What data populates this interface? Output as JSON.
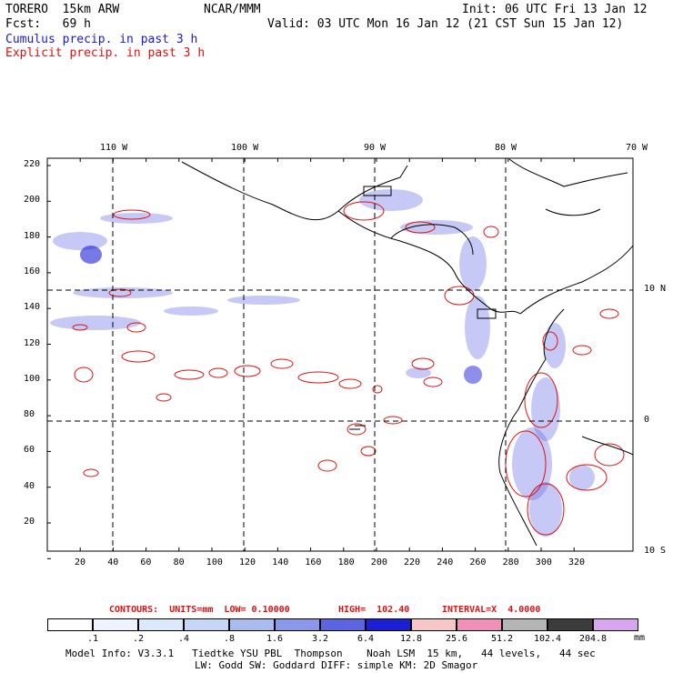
{
  "header": {
    "model": "TORERO  15km ARW",
    "org": "NCAR/MMM",
    "init": "Init: 06 UTC Fri 13 Jan 12",
    "fcst": "Fcst:   69 h",
    "valid": "Valid: 03 UTC Mon 16 Jan 12 (21 CST Sun 15 Jan 12)",
    "line_cumulus": "Cumulus precip. in past 3 h",
    "line_explicit": "Explicit precip. in past 3 h"
  },
  "axes": {
    "top_lon": [
      "110 W",
      "100 W",
      "90 W",
      "80 W",
      "70 W"
    ],
    "right_lat": [
      "10 N",
      "0",
      "10 S"
    ],
    "left_y": [
      "220",
      "200",
      "180",
      "160",
      "140",
      "120",
      "100",
      "80",
      "60",
      "40",
      "20"
    ],
    "bottom_x": [
      "20",
      "40",
      "60",
      "80",
      "100",
      "120",
      "140",
      "160",
      "180",
      "200",
      "220",
      "240",
      "260",
      "280",
      "300",
      "320"
    ]
  },
  "contour_info": {
    "label": "CONTOURS:  UNITS=mm  LOW= 0.10000",
    "high": "HIGH=  102.40",
    "interval": "INTERVAL=X  4.0000"
  },
  "legend": {
    "unit": "mm",
    "labels": [
      ".1",
      ".2",
      ".4",
      ".8",
      "1.6",
      "3.2",
      "6.4",
      "12.8",
      "25.6",
      "51.2",
      "102.4",
      "204.8"
    ],
    "colors": [
      "#ffffff",
      "#eef4ff",
      "#dce8fb",
      "#c5d6f7",
      "#aabbf0",
      "#8a97ea",
      "#5c64e2",
      "#1b1fd6",
      "#f7c6c6",
      "#f28fb8",
      "#b5b5b5",
      "#3c3c3c",
      "#d8a6f0"
    ]
  },
  "footer": {
    "line1": "Model Info: V3.3.1   Tiedtke YSU PBL  Thompson    Noah LSM  15 km,   44 levels,   44 sec",
    "line2": "LW: Godd SW: Goddard DIFF: simple KM: 2D Smagor"
  }
}
